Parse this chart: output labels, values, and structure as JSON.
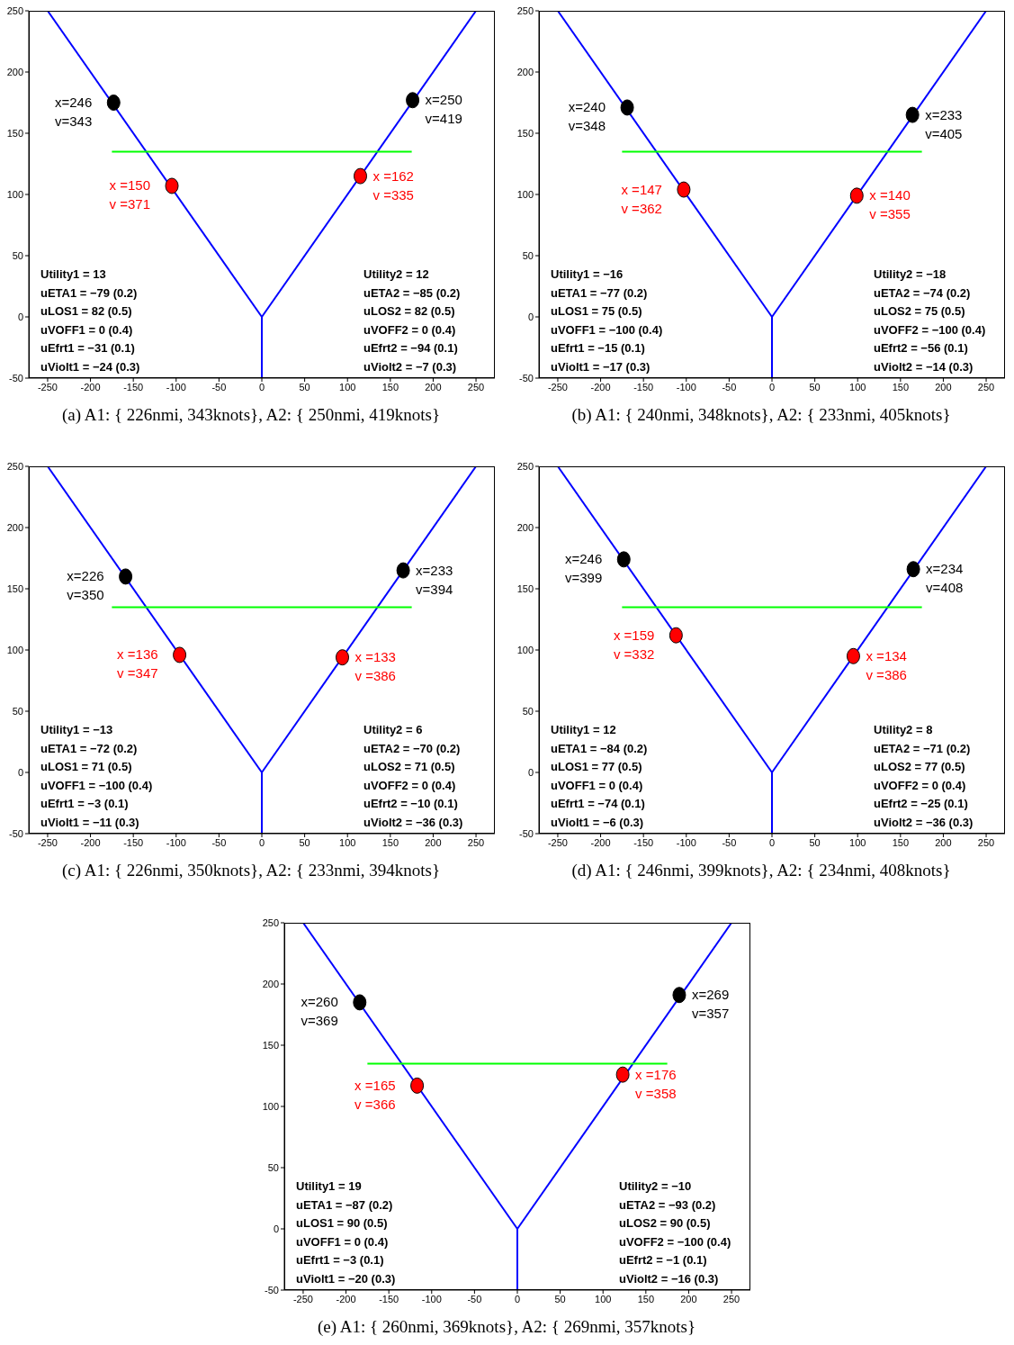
{
  "chart_data": [
    {
      "type": "line",
      "title": "(a) A1: { 226nmi, 343knots}, A2: { 250nmi, 419knots}",
      "xlim": [
        -272,
        272
      ],
      "ylim": [
        -50,
        250
      ],
      "xticks": [
        -250,
        -200,
        -150,
        -100,
        -50,
        0,
        50,
        100,
        150,
        200,
        250
      ],
      "yticks": [
        -50,
        0,
        50,
        100,
        150,
        200,
        250
      ],
      "series": [
        {
          "type": "line",
          "color": "#0000ff",
          "x": [
            -250,
            0
          ],
          "values": [
            250,
            0
          ]
        },
        {
          "type": "line",
          "color": "#0000ff",
          "x": [
            0,
            250
          ],
          "values": [
            0,
            250
          ]
        },
        {
          "type": "line",
          "color": "#0000ff",
          "x": [
            0,
            0
          ],
          "values": [
            0,
            -50
          ]
        },
        {
          "type": "line",
          "color": "#00ff00",
          "x": [
            -175,
            175
          ],
          "values": [
            135,
            135
          ]
        },
        {
          "type": "scatter",
          "marker": "circle",
          "color": "#000000",
          "x": [
            -173,
            176
          ],
          "values": [
            175,
            177
          ]
        },
        {
          "type": "scatter",
          "marker": "circle",
          "color": "#ff0000",
          "x": [
            -105,
            115
          ],
          "values": [
            107,
            115
          ]
        }
      ],
      "annotations": [
        {
          "text": "x=246\nv=343",
          "x": -173,
          "y": 175
        },
        {
          "text": "x=250\nv=419",
          "x": 176,
          "y": 177
        },
        {
          "text": "x =150\nv =371",
          "x": -105,
          "y": 107
        },
        {
          "text": "x =162\nv =335",
          "x": 115,
          "y": 115
        },
        "Utility1 = 13\nuETA1 = −79 (0.2)\nuLOS1 = 82 (0.5)\nuVOFF1 = 0 (0.4)\nuEfrt1 = −31 (0.1)\nuViolt1 = −24 (0.3)",
        "Utility2 = 12\nuETA2 = −85 (0.2)\nuLOS2 = 82 (0.5)\nuVOFF2 = 0 (0.4)\nuEfrt2 = −94 (0.1)\nuViolt2 = −7 (0.3)"
      ]
    },
    {
      "type": "line",
      "title": "(b) A1: { 240nmi, 348knots}, A2: { 233nmi, 405knots}",
      "xlim": [
        -272,
        272
      ],
      "ylim": [
        -50,
        250
      ],
      "xticks": [
        -250,
        -200,
        -150,
        -100,
        -50,
        0,
        50,
        100,
        150,
        200,
        250
      ],
      "yticks": [
        -50,
        0,
        50,
        100,
        150,
        200,
        250
      ],
      "series": [
        {
          "type": "line",
          "color": "#0000ff",
          "x": [
            -250,
            0
          ],
          "values": [
            250,
            0
          ]
        },
        {
          "type": "line",
          "color": "#0000ff",
          "x": [
            0,
            250
          ],
          "values": [
            0,
            250
          ]
        },
        {
          "type": "line",
          "color": "#0000ff",
          "x": [
            0,
            0
          ],
          "values": [
            0,
            -50
          ]
        },
        {
          "type": "line",
          "color": "#00ff00",
          "x": [
            -175,
            175
          ],
          "values": [
            135,
            135
          ]
        },
        {
          "type": "scatter",
          "marker": "circle",
          "color": "#000000",
          "x": [
            -169,
            164
          ],
          "values": [
            171,
            165
          ]
        },
        {
          "type": "scatter",
          "marker": "circle",
          "color": "#ff0000",
          "x": [
            -103,
            99
          ],
          "values": [
            104,
            99
          ]
        }
      ],
      "annotations": [
        {
          "text": "x=240\nv=348",
          "x": -169,
          "y": 171
        },
        {
          "text": "x=233\nv=405",
          "x": 164,
          "y": 165
        },
        {
          "text": "x =147\nv =362",
          "x": -103,
          "y": 104
        },
        {
          "text": "x =140\nv =355",
          "x": 99,
          "y": 99
        },
        "Utility1 = −16\nuETA1 = −77 (0.2)\nuLOS1 = 75 (0.5)\nuVOFF1 = −100 (0.4)\nuEfrt1 = −15 (0.1)\nuViolt1 = −17 (0.3)",
        "Utility2 = −18\nuETA2 = −74 (0.2)\nuLOS2 = 75 (0.5)\nuVOFF2 = −100 (0.4)\nuEfrt2 = −56 (0.1)\nuViolt2 = −14 (0.3)"
      ]
    },
    {
      "type": "line",
      "title": "(c) A1: { 226nmi, 350knots}, A2: { 233nmi, 394knots}",
      "xlim": [
        -272,
        272
      ],
      "ylim": [
        -50,
        250
      ],
      "xticks": [
        -250,
        -200,
        -150,
        -100,
        -50,
        0,
        50,
        100,
        150,
        200,
        250
      ],
      "yticks": [
        -50,
        0,
        50,
        100,
        150,
        200,
        250
      ],
      "series": [
        {
          "type": "line",
          "color": "#0000ff",
          "x": [
            -250,
            0
          ],
          "values": [
            250,
            0
          ]
        },
        {
          "type": "line",
          "color": "#0000ff",
          "x": [
            0,
            250
          ],
          "values": [
            0,
            250
          ]
        },
        {
          "type": "line",
          "color": "#0000ff",
          "x": [
            0,
            0
          ],
          "values": [
            0,
            -50
          ]
        },
        {
          "type": "line",
          "color": "#00ff00",
          "x": [
            -175,
            175
          ],
          "values": [
            135,
            135
          ]
        },
        {
          "type": "scatter",
          "marker": "circle",
          "color": "#000000",
          "x": [
            -159,
            165
          ],
          "values": [
            160,
            165
          ]
        },
        {
          "type": "scatter",
          "marker": "circle",
          "color": "#ff0000",
          "x": [
            -96,
            94
          ],
          "values": [
            96,
            94
          ]
        }
      ],
      "annotations": [
        {
          "text": "x=226\nv=350",
          "x": -159,
          "y": 160
        },
        {
          "text": "x=233\nv=394",
          "x": 165,
          "y": 165
        },
        {
          "text": "x =136\nv =347",
          "x": -96,
          "y": 96
        },
        {
          "text": "x =133\nv =386",
          "x": 94,
          "y": 94
        },
        "Utility1 = −13\nuETA1 = −72 (0.2)\nuLOS1 = 71 (0.5)\nuVOFF1 = −100 (0.4)\nuEfrt1 = −3 (0.1)\nuViolt1 = −11 (0.3)",
        "Utility2 = 6\nuETA2 = −70 (0.2)\nuLOS2 = 71 (0.5)\nuVOFF2 = 0 (0.4)\nuEfrt2 = −10 (0.1)\nuViolt2 = −36 (0.3)"
      ]
    },
    {
      "type": "line",
      "title": "(d) A1: { 246nmi, 399knots}, A2: { 234nmi, 408knots}",
      "xlim": [
        -272,
        272
      ],
      "ylim": [
        -50,
        250
      ],
      "xticks": [
        -250,
        -200,
        -150,
        -100,
        -50,
        0,
        50,
        100,
        150,
        200,
        250
      ],
      "yticks": [
        -50,
        0,
        50,
        100,
        150,
        200,
        250
      ],
      "series": [
        {
          "type": "line",
          "color": "#0000ff",
          "x": [
            -250,
            0
          ],
          "values": [
            250,
            0
          ]
        },
        {
          "type": "line",
          "color": "#0000ff",
          "x": [
            0,
            250
          ],
          "values": [
            0,
            250
          ]
        },
        {
          "type": "line",
          "color": "#0000ff",
          "x": [
            0,
            0
          ],
          "values": [
            0,
            -50
          ]
        },
        {
          "type": "line",
          "color": "#00ff00",
          "x": [
            -175,
            175
          ],
          "values": [
            135,
            135
          ]
        },
        {
          "type": "scatter",
          "marker": "circle",
          "color": "#000000",
          "x": [
            -173,
            165
          ],
          "values": [
            174,
            166
          ]
        },
        {
          "type": "scatter",
          "marker": "circle",
          "color": "#ff0000",
          "x": [
            -112,
            95
          ],
          "values": [
            112,
            95
          ]
        }
      ],
      "annotations": [
        {
          "text": "x=246\nv=399",
          "x": -173,
          "y": 174
        },
        {
          "text": "x=234\nv=408",
          "x": 165,
          "y": 166
        },
        {
          "text": "x =159\nv =332",
          "x": -112,
          "y": 112
        },
        {
          "text": "x =134\nv =386",
          "x": 95,
          "y": 95
        },
        "Utility1 = 12\nuETA1 = −84 (0.2)\nuLOS1 = 77 (0.5)\nuVOFF1 = 0 (0.4)\nuEfrt1 = −74 (0.1)\nuViolt1 = −6 (0.3)",
        "Utility2 = 8\nuETA2 = −71 (0.2)\nuLOS2 = 77 (0.5)\nuVOFF2 = 0 (0.4)\nuEfrt2 = −25 (0.1)\nuViolt2 = −36 (0.3)"
      ]
    },
    {
      "type": "line",
      "title": "(e) A1: { 260nmi, 369knots}, A2: { 269nmi, 357knots}",
      "xlim": [
        -272,
        272
      ],
      "ylim": [
        -50,
        250
      ],
      "xticks": [
        -250,
        -200,
        -150,
        -100,
        -50,
        0,
        50,
        100,
        150,
        200,
        250
      ],
      "yticks": [
        -50,
        0,
        50,
        100,
        150,
        200,
        250
      ],
      "series": [
        {
          "type": "line",
          "color": "#0000ff",
          "x": [
            -250,
            0
          ],
          "values": [
            250,
            0
          ]
        },
        {
          "type": "line",
          "color": "#0000ff",
          "x": [
            0,
            250
          ],
          "values": [
            0,
            250
          ]
        },
        {
          "type": "line",
          "color": "#0000ff",
          "x": [
            0,
            0
          ],
          "values": [
            0,
            -50
          ]
        },
        {
          "type": "line",
          "color": "#00ff00",
          "x": [
            -175,
            175
          ],
          "values": [
            135,
            135
          ]
        },
        {
          "type": "scatter",
          "marker": "circle",
          "color": "#000000",
          "x": [
            -184,
            189
          ],
          "values": [
            185,
            191
          ]
        },
        {
          "type": "scatter",
          "marker": "circle",
          "color": "#ff0000",
          "x": [
            -117,
            123
          ],
          "values": [
            117,
            126
          ]
        }
      ],
      "annotations": [
        {
          "text": "x=260\nv=369",
          "x": -184,
          "y": 185
        },
        {
          "text": "x=269\nv=357",
          "x": 189,
          "y": 191
        },
        {
          "text": "x =165\nv =366",
          "x": -117,
          "y": 117
        },
        {
          "text": "x =176\nv =358",
          "x": 123,
          "y": 126
        },
        "Utility1 = 19\nuETA1 = −87 (0.2)\nuLOS1 = 90 (0.5)\nuVOFF1 = 0 (0.4)\nuEfrt1 = −3 (0.1)\nuViolt1 = −20 (0.3)",
        "Utility2 = −10\nuETA2 = −93 (0.2)\nuLOS2 = 90 (0.5)\nuVOFF2 = −100 (0.4)\nuEfrt2 = −1 (0.1)\nuViolt2 = −16 (0.3)"
      ]
    }
  ]
}
